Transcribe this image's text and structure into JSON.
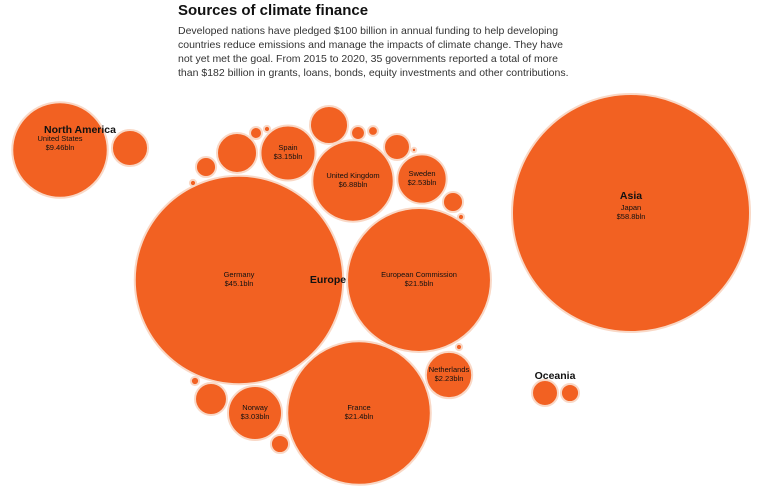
{
  "chart_data": {
    "type": "bubble",
    "title": "Sources of climate finance",
    "subtitle": "Developed nations have pledged $100 billion in annual funding to help developing countries reduce emissions and manage the impacts of climate change. They have not yet met the goal. From 2015 to 2020, 35 governments reported a total of more than $182 billion in grants, loans, bonds, equity investments and other contributions.",
    "color": "#f26122",
    "groups": [
      {
        "name": "North America",
        "categories": [
          "United States",
          null
        ],
        "values": [
          9.46,
          1.35
        ],
        "value_labels": [
          "$9.46bln",
          null
        ]
      },
      {
        "name": "Europe",
        "categories": [
          "Germany",
          "European Commission",
          "France",
          "United Kingdom",
          "Spain",
          "Sweden",
          "Norway",
          "Netherlands",
          null,
          null,
          null,
          null,
          null,
          null,
          null,
          null,
          null,
          null,
          null,
          null,
          null,
          null,
          null,
          null
        ],
        "values": [
          45.1,
          21.5,
          21.4,
          6.88,
          3.15,
          2.53,
          3.03,
          2.23,
          1.66,
          1.5,
          0.7,
          0.42,
          0.42,
          1.06,
          0.34,
          0.2,
          0.1,
          0.15,
          0.04,
          0.04,
          0.04,
          0.07,
          0.04,
          0.02
        ],
        "value_labels": [
          "$45.1bln",
          "$21.5bln",
          "$21.4bln",
          "$6.88bln",
          "$3.15bln",
          "$2.53bln",
          "$3.03bln",
          "$2.23bln",
          null,
          null,
          null,
          null,
          null,
          null,
          null,
          null,
          null,
          null,
          null,
          null,
          null,
          null,
          null,
          null
        ]
      },
      {
        "name": "Asia",
        "categories": [
          "Japan"
        ],
        "values": [
          58.8
        ],
        "value_labels": [
          "$58.8bln"
        ]
      },
      {
        "name": "Oceania",
        "categories": [
          null,
          null
        ],
        "values": [
          0.7,
          0.34
        ],
        "value_labels": [
          null,
          null
        ]
      }
    ]
  }
}
